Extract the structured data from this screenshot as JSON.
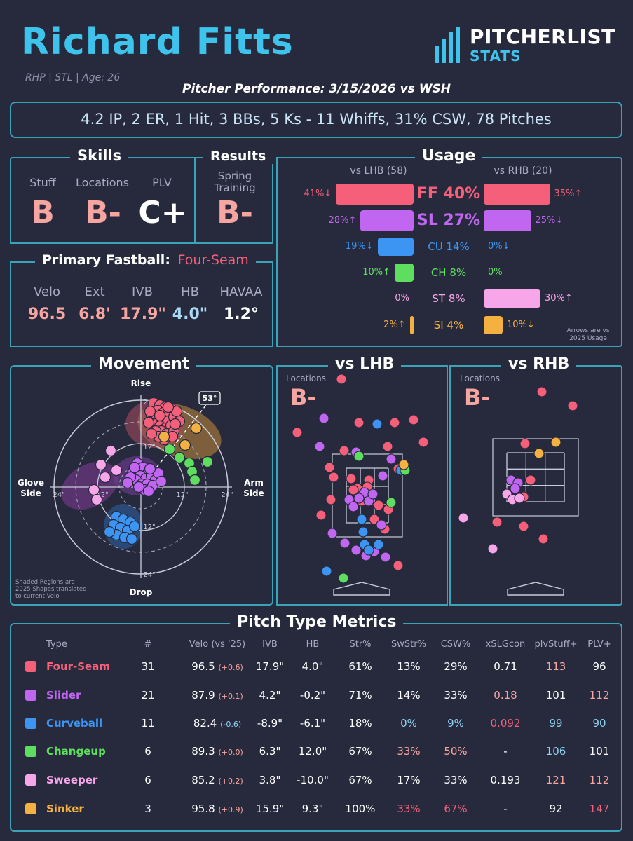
{
  "header": {
    "name": "Richard Fitts",
    "info": "RHP | STL | Age: 26",
    "logo_top": "PITCHERLIST",
    "logo_bottom": "STATS",
    "performance_title": "Pitcher Performance: 3/15/2026 vs WSH",
    "line": "4.2 IP, 2 ER, 1 Hit, 3 BBs, 5 Ks - 11 Whiffs, 31% CSW, 78 Pitches"
  },
  "colors": {
    "four_seam": "#f55f7a",
    "slider": "#c066f0",
    "curveball": "#3c95f2",
    "changeup": "#5ede5e",
    "sweeper": "#f7a6ea",
    "sinker": "#f4b141",
    "grade_good": "#f7a5a0",
    "accent": "#3aa3b8"
  },
  "skills": {
    "title": "Skills",
    "labels": [
      "Stuff",
      "Locations",
      "PLV"
    ],
    "grades": [
      "B",
      "B-",
      "C+"
    ]
  },
  "results": {
    "title": "Results",
    "label_line1": "Spring",
    "label_line2": "Training",
    "grade": "B-"
  },
  "fastball": {
    "title": "Primary Fastball:",
    "pitch": "Four-Seam",
    "labels": [
      "Velo",
      "Ext",
      "IVB",
      "HB",
      "HAVAA"
    ],
    "values": [
      "96.5",
      "6.8'",
      "17.9\"",
      "4.0\"",
      "1.2°"
    ]
  },
  "usage": {
    "title": "Usage",
    "lhb_label": "vs LHB (58)",
    "rhb_label": "vs RHB (20)",
    "note_line1": "Arrows are vs",
    "note_line2": "2025 Usage",
    "rows": [
      {
        "center": "FF 40%",
        "lhb": "41%↓",
        "rhb": "35%↑",
        "lhb_pct": 41,
        "rhb_pct": 35,
        "color": "#f55f7a",
        "big": true
      },
      {
        "center": "SL 27%",
        "lhb": "28%↑",
        "rhb": "25%↓",
        "lhb_pct": 28,
        "rhb_pct": 25,
        "color": "#c066f0",
        "big": true
      },
      {
        "center": "CU 14%",
        "lhb": "19%↓",
        "rhb": "0%↓",
        "lhb_pct": 19,
        "rhb_pct": 0,
        "color": "#3c95f2",
        "big": false
      },
      {
        "center": "CH 8%",
        "lhb": "10%↑",
        "rhb": "0%",
        "lhb_pct": 10,
        "rhb_pct": 0,
        "color": "#5ede5e",
        "big": false
      },
      {
        "center": "ST 8%",
        "lhb": "0%",
        "rhb": "30%↑",
        "lhb_pct": 0,
        "rhb_pct": 30,
        "color": "#f7a6ea",
        "big": false
      },
      {
        "center": "SI 4%",
        "lhb": "2%↑",
        "rhb": "10%↓",
        "lhb_pct": 2,
        "rhb_pct": 10,
        "color": "#f4b141",
        "big": false
      }
    ]
  },
  "movement": {
    "title": "Movement",
    "rise": "Rise",
    "drop": "Drop",
    "glove_line1": "Glove",
    "glove_line2": "Side",
    "arm_line1": "Arm",
    "arm_line2": "Side",
    "arm_angle": "53°",
    "ring_24": "24\"",
    "ring_12": "12\"",
    "note_line1": "Shaded Regions are",
    "note_line2": "2025 Shapes translated",
    "note_line3": "to current Velo"
  },
  "locations": {
    "lhb_title": "vs LHB",
    "rhb_title": "vs RHB",
    "label": "Locations",
    "lhb_grade": "B-",
    "rhb_grade": "B-"
  },
  "metrics": {
    "title": "Pitch Type Metrics",
    "headers": [
      "Type",
      "#",
      "Velo (vs '25)",
      "IVB",
      "HB",
      "Str%",
      "SwStr%",
      "CSW%",
      "xSLGcon",
      "plvStuff+",
      "PLV+"
    ],
    "rows": [
      {
        "type": "Four-Seam",
        "color": "#f55f7a",
        "n": "31",
        "velo": "96.5",
        "delta": "(+0.6)",
        "ivb": "17.9\"",
        "hb": "4.0\"",
        "str": "61%",
        "swstr": "13%",
        "csw": "29%",
        "xslg": "0.71",
        "stuff": "113",
        "plv": "96"
      },
      {
        "type": "Slider",
        "color": "#c066f0",
        "n": "21",
        "velo": "87.9",
        "delta": "(+0.1)",
        "ivb": "4.2\"",
        "hb": "-0.2\"",
        "str": "71%",
        "swstr": "14%",
        "csw": "33%",
        "xslg": "0.18",
        "stuff": "101",
        "plv": "112"
      },
      {
        "type": "Curveball",
        "color": "#3c95f2",
        "n": "11",
        "velo": "82.4",
        "delta": "(-0.6)",
        "ivb": "-8.9\"",
        "hb": "-6.1\"",
        "str": "18%",
        "swstr": "0%",
        "csw": "9%",
        "xslg": "0.092",
        "stuff": "99",
        "plv": "90"
      },
      {
        "type": "Changeup",
        "color": "#5ede5e",
        "n": "6",
        "velo": "89.3",
        "delta": "(+0.0)",
        "ivb": "6.3\"",
        "hb": "12.0\"",
        "str": "67%",
        "swstr": "33%",
        "csw": "50%",
        "xslg": "-",
        "stuff": "106",
        "plv": "101"
      },
      {
        "type": "Sweeper",
        "color": "#f7a6ea",
        "n": "6",
        "velo": "85.2",
        "delta": "(+0.2)",
        "ivb": "3.8\"",
        "hb": "-10.0\"",
        "str": "67%",
        "swstr": "17%",
        "csw": "33%",
        "xslg": "0.193",
        "stuff": "121",
        "plv": "112"
      },
      {
        "type": "Sinker",
        "color": "#f4b141",
        "n": "3",
        "velo": "95.8",
        "delta": "(+0.9)",
        "ivb": "15.9\"",
        "hb": "9.3\"",
        "str": "100%",
        "swstr": "33%",
        "csw": "67%",
        "xslg": "-",
        "stuff": "92",
        "plv": "147"
      }
    ]
  }
}
